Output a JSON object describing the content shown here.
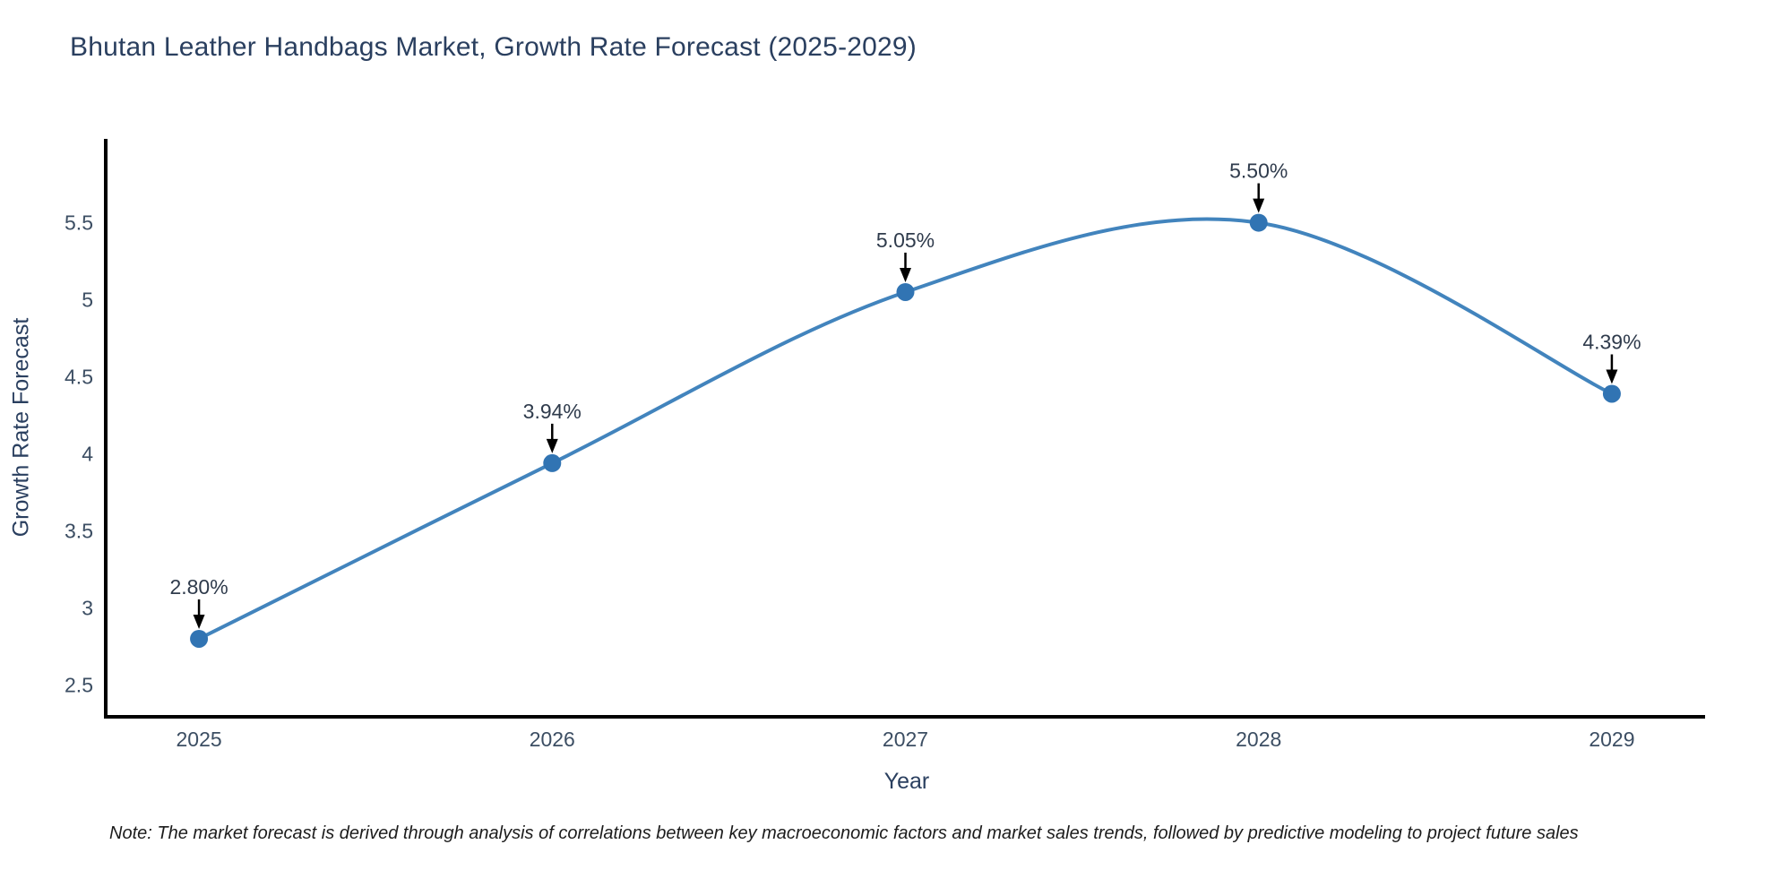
{
  "note": {
    "text": "Note: The market forecast is derived through analysis of correlations between key macroeconomic factors and market sales trends, followed by predictive modeling to project future sales"
  },
  "chart_data": {
    "type": "line",
    "title": "Bhutan Leather Handbags Market, Growth Rate Forecast (2025-2029)",
    "xlabel": "Year",
    "ylabel": "Growth Rate Forecast",
    "x": [
      2025,
      2026,
      2027,
      2028,
      2029
    ],
    "categories": [
      "2025",
      "2026",
      "2027",
      "2028",
      "2029"
    ],
    "values": [
      2.8,
      3.94,
      5.05,
      5.5,
      4.39
    ],
    "point_labels": [
      "2.80%",
      "3.94%",
      "5.05%",
      "5.50%",
      "4.39%"
    ],
    "yticks": [
      2.5,
      3,
      3.5,
      4,
      4.5,
      5,
      5.5
    ],
    "ylim": [
      2.294,
      6.044
    ],
    "xlim": [
      2024.736,
      2029.264
    ],
    "line_shape": "spline",
    "grid": false,
    "legend": "none",
    "colors": {
      "line": "#4284bd",
      "marker": "#3174b3",
      "axis": "#000000",
      "tick_text": "#3c4e63",
      "annotation_text": "#2f3b4c",
      "arrow": "#000000"
    }
  }
}
